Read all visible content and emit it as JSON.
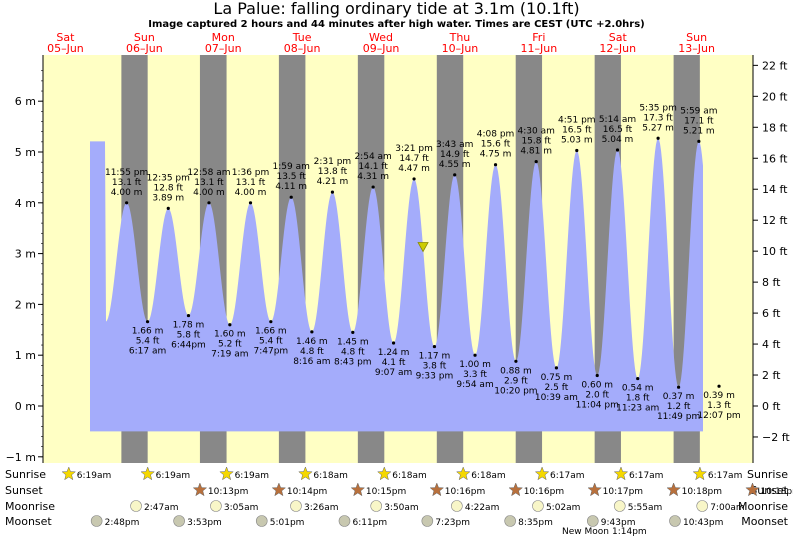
{
  "header": {
    "title": "La Palue: falling  ordinary tide at 3.1m (10.1ft)",
    "subtitle": "Image captured 2 hours and 44 minutes after high water. Times are CEST (UTC +2.0hrs)"
  },
  "colors": {
    "day": "#ffffc4",
    "night": "#888888",
    "tide_fill": "#a4acfb",
    "weekday_red": "#ff0000",
    "marker": "#cccc00"
  },
  "days": [
    {
      "dow": "Sat",
      "date": "05–Jun"
    },
    {
      "dow": "Sun",
      "date": "06–Jun"
    },
    {
      "dow": "Mon",
      "date": "07–Jun"
    },
    {
      "dow": "Tue",
      "date": "08–Jun"
    },
    {
      "dow": "Wed",
      "date": "09–Jun"
    },
    {
      "dow": "Thu",
      "date": "10–Jun"
    },
    {
      "dow": "Fri",
      "date": "11–Jun"
    },
    {
      "dow": "Sat",
      "date": "12–Jun"
    },
    {
      "dow": "Sun",
      "date": "13–Jun"
    }
  ],
  "chart_data": {
    "type": "area",
    "title": "La Palue: falling  ordinary tide at 3.1m (10.1ft)",
    "y_left_unit": "m",
    "y_right_unit": "ft",
    "ylim_m": [
      -1,
      7
    ],
    "y_left_ticks": [
      "−1 m",
      "0 m",
      "1 m",
      "2 m",
      "3 m",
      "4 m",
      "5 m",
      "6 m"
    ],
    "y_right_ticks": [
      "−2 ft",
      "0 ft",
      "2 ft",
      "4 ft",
      "6 ft",
      "8 ft",
      "10 ft",
      "12 ft",
      "14 ft",
      "16 ft",
      "18 ft",
      "20 ft",
      "22 ft"
    ],
    "current": {
      "state": "falling",
      "height_m": 3.1,
      "height_ft": 10.1,
      "day": 4,
      "time": "6:05pm"
    },
    "extremes": [
      {
        "type": "high",
        "day": 0,
        "time": "11:55 pm",
        "m": 4.0,
        "height_m": "4.00 m",
        "height_ft": "13.1 ft"
      },
      {
        "type": "low",
        "day": 1,
        "time": "6:17 am",
        "m": 1.66,
        "height_m": "1.66 m",
        "height_ft": "5.4 ft"
      },
      {
        "type": "high",
        "day": 1,
        "time": "12:35 pm",
        "m": 3.89,
        "height_m": "3.89 m",
        "height_ft": "12.8 ft"
      },
      {
        "type": "low",
        "day": 1,
        "time": "6:44pm",
        "m": 1.78,
        "height_m": "1.78 m",
        "height_ft": "5.8 ft"
      },
      {
        "type": "high",
        "day": 2,
        "time": "12:58 am",
        "m": 4.0,
        "height_m": "4.00 m",
        "height_ft": "13.1 ft"
      },
      {
        "type": "low",
        "day": 2,
        "time": "7:19 am",
        "m": 1.6,
        "height_m": "1.60 m",
        "height_ft": "5.2 ft"
      },
      {
        "type": "high",
        "day": 2,
        "time": "1:36 pm",
        "m": 4.0,
        "height_m": "4.00 m",
        "height_ft": "13.1 ft"
      },
      {
        "type": "low",
        "day": 2,
        "time": "7:47pm",
        "m": 1.66,
        "height_m": "1.66 m",
        "height_ft": "5.4 ft"
      },
      {
        "type": "high",
        "day": 3,
        "time": "1:59 am",
        "m": 4.11,
        "height_m": "4.11 m",
        "height_ft": "13.5 ft"
      },
      {
        "type": "low",
        "day": 3,
        "time": "8:16 am",
        "m": 1.46,
        "height_m": "1.46 m",
        "height_ft": "4.8 ft"
      },
      {
        "type": "high",
        "day": 3,
        "time": "2:31 pm",
        "m": 4.21,
        "height_m": "4.21 m",
        "height_ft": "13.8 ft"
      },
      {
        "type": "low",
        "day": 3,
        "time": "8:43 pm",
        "m": 1.45,
        "height_m": "1.45 m",
        "height_ft": "4.8 ft"
      },
      {
        "type": "high",
        "day": 4,
        "time": "2:54 am",
        "m": 4.31,
        "height_m": "4.31 m",
        "height_ft": "14.1 ft"
      },
      {
        "type": "low",
        "day": 4,
        "time": "9:07 am",
        "m": 1.24,
        "height_m": "1.24 m",
        "height_ft": "4.1 ft"
      },
      {
        "type": "high",
        "day": 4,
        "time": "3:21 pm",
        "m": 4.47,
        "height_m": "4.47 m",
        "height_ft": "14.7 ft"
      },
      {
        "type": "low",
        "day": 4,
        "time": "9:33 pm",
        "m": 1.17,
        "height_m": "1.17 m",
        "height_ft": "3.8 ft"
      },
      {
        "type": "high",
        "day": 5,
        "time": "3:43 am",
        "m": 4.55,
        "height_m": "4.55 m",
        "height_ft": "14.9 ft"
      },
      {
        "type": "low",
        "day": 5,
        "time": "9:54 am",
        "m": 1.0,
        "height_m": "1.00 m",
        "height_ft": "3.3 ft"
      },
      {
        "type": "high",
        "day": 5,
        "time": "4:08 pm",
        "m": 4.75,
        "height_m": "4.75 m",
        "height_ft": "15.6 ft"
      },
      {
        "type": "low",
        "day": 5,
        "time": "10:20 pm",
        "m": 0.88,
        "height_m": "0.88 m",
        "height_ft": "2.9 ft"
      },
      {
        "type": "high",
        "day": 6,
        "time": "4:30 am",
        "m": 4.81,
        "height_m": "4.81 m",
        "height_ft": "15.8 ft"
      },
      {
        "type": "low",
        "day": 6,
        "time": "10:39 am",
        "m": 0.75,
        "height_m": "0.75 m",
        "height_ft": "2.5 ft"
      },
      {
        "type": "high",
        "day": 6,
        "time": "4:51 pm",
        "m": 5.03,
        "height_m": "5.03 m",
        "height_ft": "16.5 ft"
      },
      {
        "type": "low",
        "day": 6,
        "time": "11:04 pm",
        "m": 0.6,
        "height_m": "0.60 m",
        "height_ft": "2.0 ft"
      },
      {
        "type": "high",
        "day": 7,
        "time": "5:14 am",
        "m": 5.04,
        "height_m": "5.04 m",
        "height_ft": "16.5 ft"
      },
      {
        "type": "low",
        "day": 7,
        "time": "11:23 am",
        "m": 0.54,
        "height_m": "0.54 m",
        "height_ft": "1.8 ft"
      },
      {
        "type": "high",
        "day": 7,
        "time": "5:35 pm",
        "m": 5.27,
        "height_m": "5.27 m",
        "height_ft": "17.3 ft"
      },
      {
        "type": "low",
        "day": 7,
        "time": "11:49 pm",
        "m": 0.37,
        "height_m": "0.37 m",
        "height_ft": "1.2 ft"
      },
      {
        "type": "high",
        "day": 8,
        "time": "5:59 am",
        "m": 5.21,
        "height_m": "5.21 m",
        "height_ft": "17.1 ft"
      },
      {
        "type": "low",
        "day": 8,
        "time": "12:07 pm",
        "m": 0.39,
        "height_m": "0.39 m",
        "height_ft": "1.3 ft"
      }
    ]
  },
  "astro": {
    "labels": {
      "sunrise": "Sunrise",
      "sunset": "Sunset",
      "moonrise": "Moonrise",
      "moonset": "Moonset"
    },
    "sunrise": [
      {
        "day": 0,
        "time": "6:19am"
      },
      {
        "day": 1,
        "time": "6:19am"
      },
      {
        "day": 2,
        "time": "6:19am"
      },
      {
        "day": 3,
        "time": "6:18am"
      },
      {
        "day": 4,
        "time": "6:18am"
      },
      {
        "day": 5,
        "time": "6:18am"
      },
      {
        "day": 6,
        "time": "6:17am"
      },
      {
        "day": 7,
        "time": "6:17am"
      },
      {
        "day": 8,
        "time": "6:17am"
      }
    ],
    "sunset": [
      {
        "day": 1,
        "time": "10:13pm"
      },
      {
        "day": 2,
        "time": "10:14pm"
      },
      {
        "day": 3,
        "time": "10:15pm"
      },
      {
        "day": 4,
        "time": "10:16pm"
      },
      {
        "day": 5,
        "time": "10:16pm"
      },
      {
        "day": 6,
        "time": "10:17pm"
      },
      {
        "day": 7,
        "time": "10:18pm"
      },
      {
        "day": 8,
        "time": "10:18pm"
      }
    ],
    "moonrise": [
      {
        "day": 1,
        "time": "2:47am"
      },
      {
        "day": 2,
        "time": "3:05am"
      },
      {
        "day": 3,
        "time": "3:26am"
      },
      {
        "day": 4,
        "time": "3:50am"
      },
      {
        "day": 5,
        "time": "4:22am"
      },
      {
        "day": 6,
        "time": "5:02am"
      },
      {
        "day": 7,
        "time": "5:55am"
      },
      {
        "day": 8,
        "time": "7:00am"
      }
    ],
    "moonset": [
      {
        "day": 0,
        "time": "2:48pm"
      },
      {
        "day": 1,
        "time": "3:53pm"
      },
      {
        "day": 2,
        "time": "5:01pm"
      },
      {
        "day": 3,
        "time": "6:11pm"
      },
      {
        "day": 4,
        "time": "7:23pm"
      },
      {
        "day": 5,
        "time": "8:35pm"
      },
      {
        "day": 6,
        "time": "9:43pm"
      },
      {
        "day": 7,
        "time": "10:43pm"
      }
    ],
    "moon_phase": {
      "label": "New Moon",
      "time": "1:14pm"
    }
  }
}
